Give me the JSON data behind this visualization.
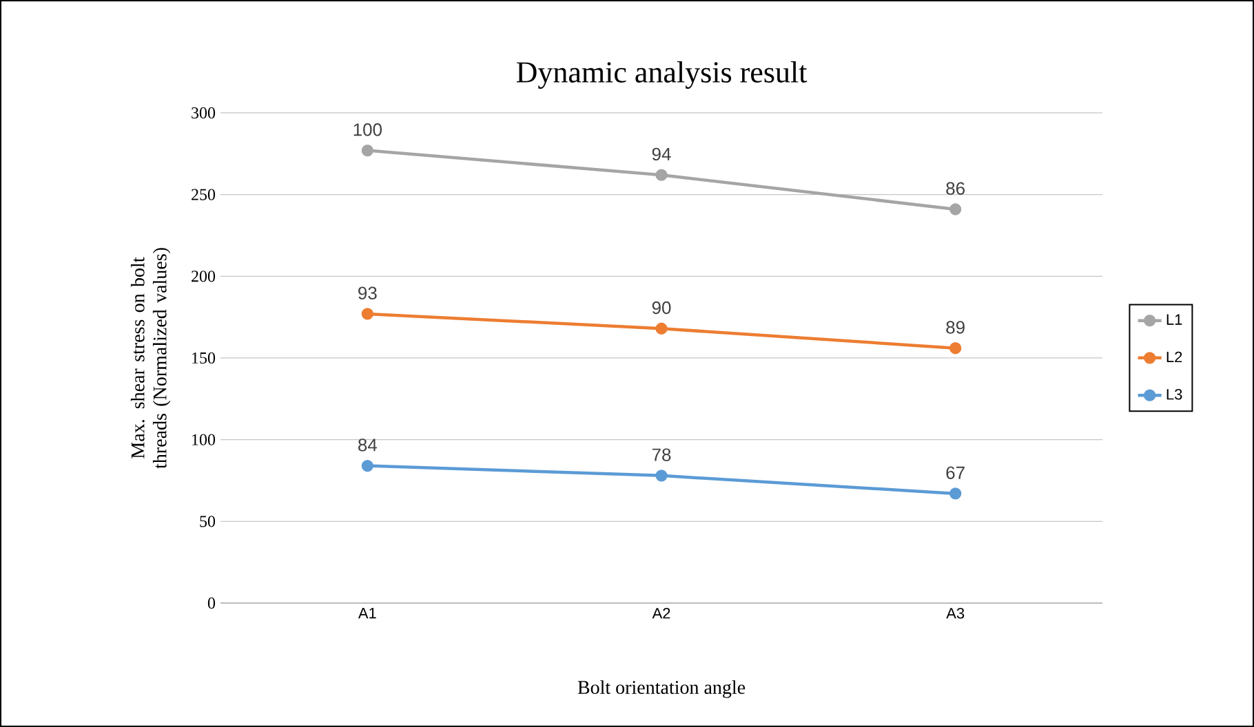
{
  "chart_data": {
    "type": "line",
    "title": "Dynamic analysis result",
    "xlabel": "Bolt orientation angle",
    "ylabel": "Max. shear stress on bolt threads (Normalized values)",
    "categories": [
      "A1",
      "A2",
      "A3"
    ],
    "series": [
      {
        "name": "L1",
        "color": "#a5a5a5",
        "values": [
          277,
          262,
          241
        ]
      },
      {
        "name": "L2",
        "color": "#ed7d31",
        "values": [
          177,
          168,
          156
        ]
      },
      {
        "name": "L3",
        "color": "#5b9bd5",
        "values": [
          84,
          78,
          67
        ]
      }
    ],
    "annotations": [
      {
        "text": "100",
        "x": "A1",
        "y": 277
      },
      {
        "text": "94",
        "x": "A2",
        "y": 262
      },
      {
        "text": "86",
        "x": "A3",
        "y": 241
      },
      {
        "text": "93",
        "x": "A1",
        "y": 177
      },
      {
        "text": "90",
        "x": "A2",
        "y": 168
      },
      {
        "text": "89",
        "x": "A3",
        "y": 156
      },
      {
        "text": "84",
        "x": "A1",
        "y": 84
      },
      {
        "text": "78",
        "x": "A2",
        "y": 78
      },
      {
        "text": "67",
        "x": "A3",
        "y": 67
      }
    ],
    "ylim": [
      0,
      300
    ],
    "yticks": [
      0,
      50,
      100,
      150,
      200,
      250,
      300
    ],
    "grid": "y",
    "legend": "right",
    "marker": "circle",
    "line_style": "solid"
  }
}
